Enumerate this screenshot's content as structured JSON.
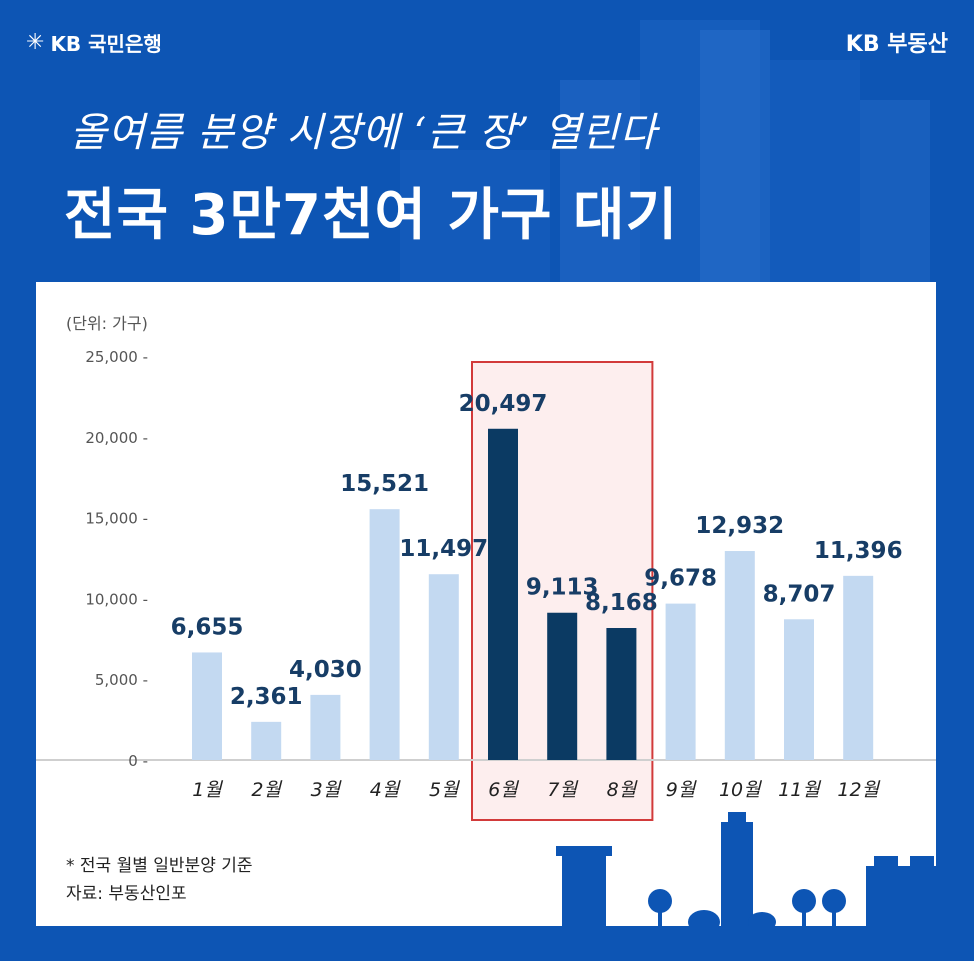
{
  "brand": {
    "left_logo": "KB 국민은행",
    "right_logo": "KB 부동산"
  },
  "header": {
    "subtitle": "올여름 분양 시장에 ‘큰 장’ 열린다",
    "title": "전국 3만7천여 가구 대기"
  },
  "chart": {
    "unit_label": "(단위: 가구)"
  },
  "footnote": {
    "note": "* 전국 월별 일반분양 기준",
    "source": "자료: 부동산인포"
  },
  "colors": {
    "background": "#0d55b4",
    "bar_light": "#c3d9f1",
    "bar_dark": "#0b3a63",
    "highlight_fill": "#fdeeee",
    "highlight_border": "#d23a3a",
    "label": "#173d66"
  },
  "chart_data": {
    "type": "bar",
    "title": "전국 3만7천여 가구 대기",
    "xlabel": "",
    "ylabel": "(단위: 가구)",
    "ylim": [
      0,
      25000
    ],
    "yticks": [
      0,
      5000,
      10000,
      15000,
      20000,
      25000
    ],
    "ytick_labels": [
      "0",
      "5,000",
      "10,000",
      "15,000",
      "20,000",
      "25,000"
    ],
    "categories": [
      "1월",
      "2월",
      "3월",
      "4월",
      "5월",
      "6월",
      "7월",
      "8월",
      "9월",
      "10월",
      "11월",
      "12월"
    ],
    "values": [
      6655,
      2361,
      4030,
      15521,
      11497,
      20497,
      9113,
      8168,
      9678,
      12932,
      8707,
      11396
    ],
    "value_labels": [
      "6,655",
      "2,361",
      "4,030",
      "15,521",
      "11,497",
      "20,497",
      "9,113",
      "8,168",
      "9,678",
      "12,932",
      "8,707",
      "11,396"
    ],
    "highlighted": [
      "6월",
      "7월",
      "8월"
    ],
    "grid": false,
    "legend": "none"
  }
}
